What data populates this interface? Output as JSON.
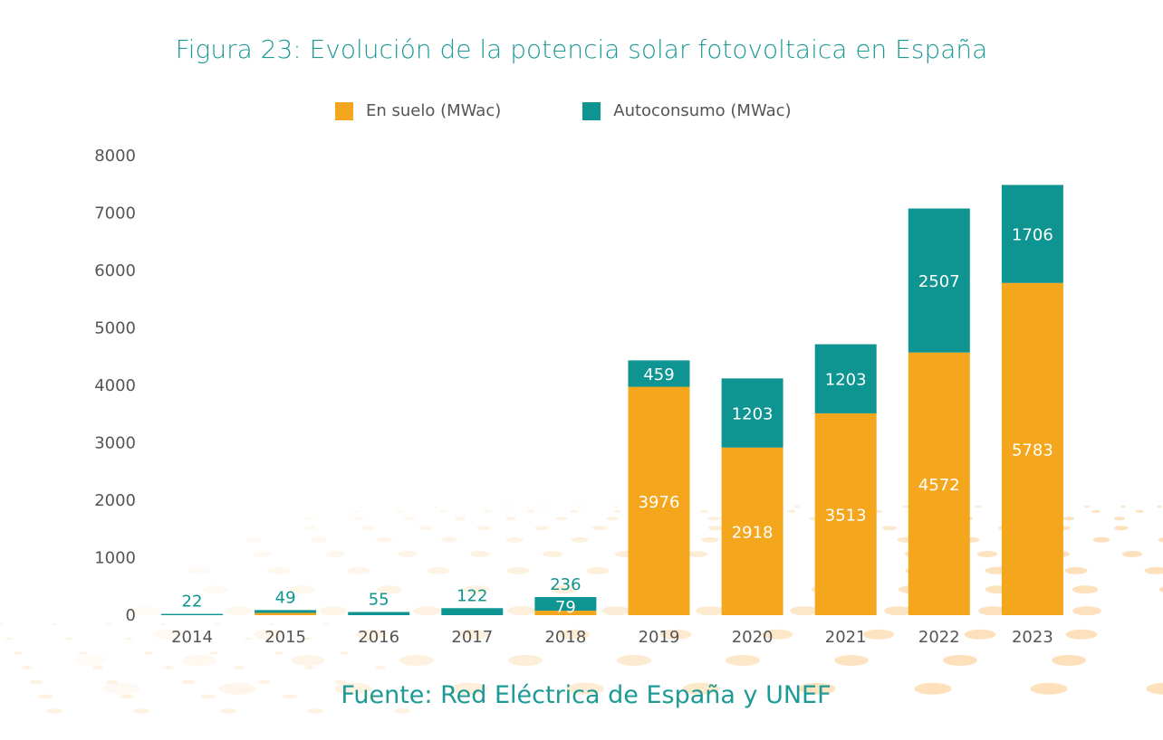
{
  "title": "Figura 23: Evolución de la potencia solar fotovoltaica en España",
  "source": "Fuente: Red Eléctrica de España y UNEF",
  "colors": {
    "en_suelo": "#f4a61d",
    "autoconsumo": "#0e9591",
    "title": "#1b9a96",
    "background_dots": "#fbdcb0"
  },
  "chart_data": {
    "type": "bar",
    "stacked": true,
    "title": "Figura 23: Evolución de la potencia solar fotovoltaica en España",
    "xlabel": "",
    "ylabel": "",
    "ylim": [
      0,
      8000
    ],
    "yticks": [
      "0",
      "1000",
      "2000",
      "3000",
      "4000",
      "5000",
      "6000",
      "7000",
      "8000"
    ],
    "grid": false,
    "legend_placement": "top",
    "categories": [
      "2014",
      "2015",
      "2016",
      "2017",
      "2018",
      "2019",
      "2020",
      "2021",
      "2022",
      "2023"
    ],
    "series": [
      {
        "name": "En suelo (MWac)",
        "color": "#f4a61d",
        "values": [
          0,
          40,
          0,
          0,
          79,
          3976,
          2918,
          3513,
          4572,
          5783
        ],
        "labels": [
          "",
          "",
          "",
          "",
          "79",
          "3976",
          "2918",
          "3513",
          "4572",
          "5783"
        ]
      },
      {
        "name": "Autoconsumo (MWac)",
        "color": "#0e9591",
        "values": [
          22,
          49,
          55,
          122,
          236,
          459,
          1203,
          1203,
          2507,
          1706
        ],
        "labels": [
          "22",
          "49",
          "55",
          "122",
          "236",
          "459",
          "1203",
          "1203",
          "2507",
          "1706"
        ]
      }
    ]
  }
}
